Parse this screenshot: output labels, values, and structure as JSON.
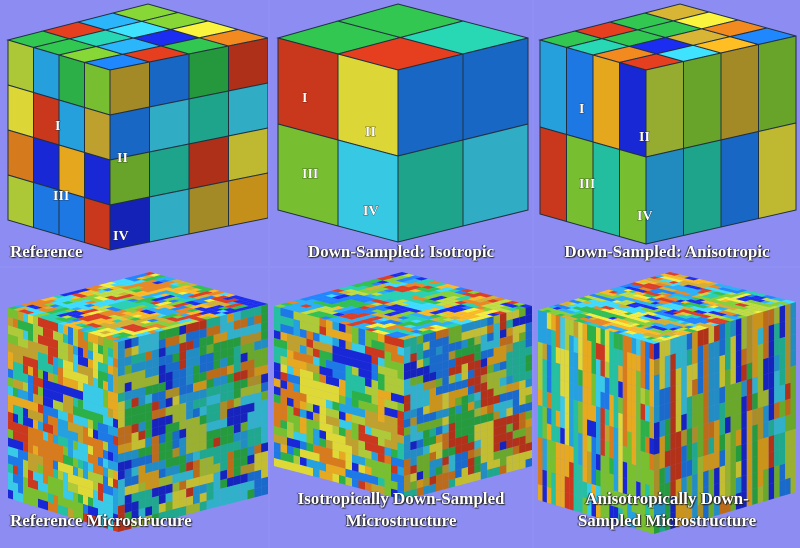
{
  "panels": [
    {
      "caption": "Reference",
      "regions": [
        "I",
        "II",
        "III",
        "IV"
      ]
    },
    {
      "caption": "Down-Sampled: Isotropic",
      "regions": [
        "I",
        "II",
        "III",
        "IV"
      ]
    },
    {
      "caption": "Down-Sampled: Anisotropic",
      "regions": [
        "I",
        "II",
        "III",
        "IV"
      ]
    },
    {
      "caption": "Reference Microstrucure"
    },
    {
      "caption_lines": [
        "Isotropically Down-Sampled",
        "Microstructure"
      ]
    },
    {
      "caption_lines": [
        "Anisotropically Down-",
        "Sampled Microstructure"
      ]
    }
  ],
  "palette": [
    "#1e7ef0",
    "#28a8e8",
    "#3ad2f0",
    "#2db84a",
    "#7dc832",
    "#b6d23a",
    "#e8e23a",
    "#f0b020",
    "#e0801e",
    "#d43a1e",
    "#1a2ae0",
    "#25c8a8",
    "#c8a830"
  ]
}
